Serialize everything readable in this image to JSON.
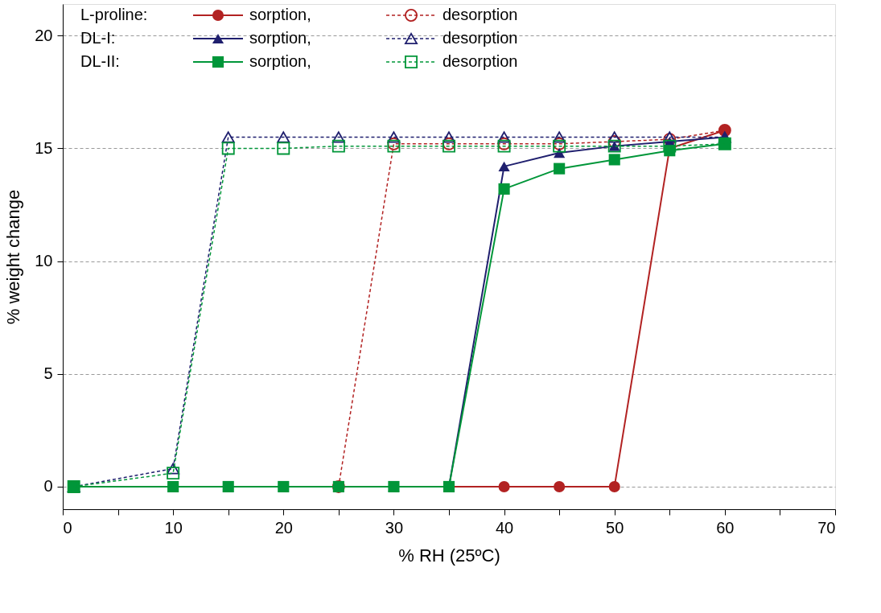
{
  "chart_data": {
    "type": "line",
    "xlabel": "% RH (25ºC)",
    "ylabel": "% weight change",
    "x": [
      1,
      10,
      15,
      20,
      25,
      30,
      35,
      40,
      45,
      50,
      55,
      60
    ],
    "xlim": [
      0,
      70
    ],
    "ylim": [
      -1,
      21.4
    ],
    "xticks": [
      0,
      {
        "value": 5,
        "label": null
      },
      10,
      {
        "value": 15,
        "label": null
      },
      20,
      {
        "value": 25,
        "label": null
      },
      30,
      {
        "value": 35,
        "label": null
      },
      40,
      {
        "value": 45,
        "label": null
      },
      50,
      {
        "value": 55,
        "label": null
      },
      60,
      {
        "value": 65,
        "label": null
      },
      70
    ],
    "yticks": [
      0,
      5,
      10,
      15,
      20
    ],
    "grid": "y",
    "legend": "top left",
    "annotations": [
      "L-proline:",
      "DL-I:",
      "DL-II:"
    ],
    "series": [
      {
        "name": "sorption,",
        "color": "#b22222",
        "marker": "circle",
        "line_style": "solid",
        "values": [
          null,
          null,
          null,
          null,
          null,
          null,
          0,
          0,
          0,
          0,
          15.0,
          15.8
        ]
      },
      {
        "name": "desorption",
        "color": "#b22222",
        "marker": "circle",
        "line_style": "dashed",
        "values": [
          null,
          null,
          null,
          null,
          0,
          15.2,
          15.2,
          15.2,
          15.2,
          15.3,
          15.4,
          15.8
        ]
      },
      {
        "name": "sorption,",
        "color": "#1f1f6e",
        "marker": "triangle",
        "line_style": "solid",
        "values": [
          null,
          null,
          null,
          null,
          null,
          0,
          0,
          14.2,
          14.8,
          15.1,
          15.3,
          15.5
        ]
      },
      {
        "name": "desorption",
        "color": "#1f1f6e",
        "marker": "triangle",
        "line_style": "dashed",
        "values": [
          0,
          0.8,
          15.5,
          15.5,
          15.5,
          15.5,
          15.5,
          15.5,
          15.5,
          15.5,
          15.5,
          15.5
        ]
      },
      {
        "name": "sorption,",
        "color": "#009639",
        "marker": "square",
        "line_style": "solid",
        "values": [
          0,
          0,
          0,
          0,
          0,
          0,
          0,
          13.2,
          14.1,
          14.5,
          14.9,
          15.2
        ]
      },
      {
        "name": "desorption",
        "color": "#009639",
        "marker": "square",
        "line_style": "dashed",
        "values": [
          0,
          0.6,
          15.0,
          15.0,
          15.1,
          15.1,
          15.1,
          15.1,
          15.1,
          15.1,
          15.1,
          15.2
        ]
      }
    ]
  }
}
